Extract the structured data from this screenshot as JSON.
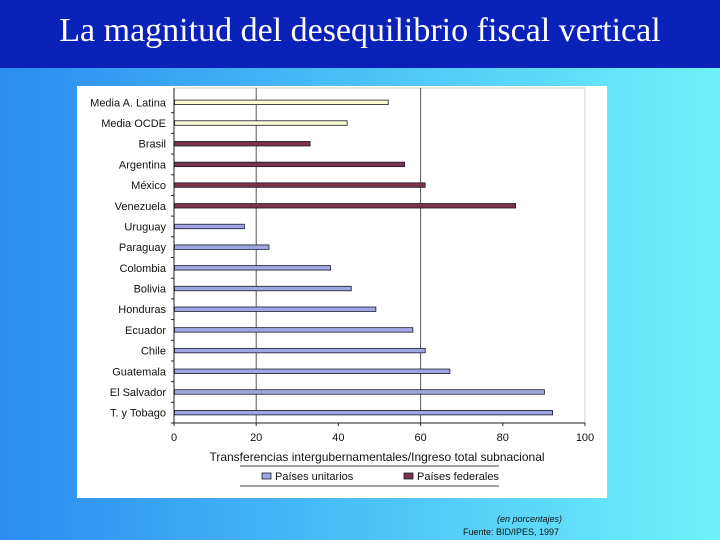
{
  "slide": {
    "title": "La magnitud del desequilibrio fiscal vertical",
    "units_note": "(en porcentajes)",
    "source_note": "Fuente: BID/IPES, 1997"
  },
  "colors": {
    "title_bar": "#0a22b8",
    "unitarios": "#9fa6e2",
    "federales": "#7b3349",
    "medias": "#fbfbd2"
  },
  "chart_data": {
    "type": "bar",
    "orientation": "horizontal",
    "categories": [
      "Media A. Latina",
      "Media OCDE",
      "Brasil",
      "Argentina",
      "México",
      "Venezuela",
      "Uruguay",
      "Paraguay",
      "Colombia",
      "Bolivia",
      "Honduras",
      "Ecuador",
      "Chile",
      "Guatemala",
      "El Salvador",
      "T. y Tobago"
    ],
    "values": [
      52,
      42,
      33,
      56,
      61,
      83,
      17,
      23,
      38,
      43,
      49,
      58,
      61,
      67,
      90,
      92
    ],
    "groups": [
      "media",
      "media",
      "federales",
      "federales",
      "federales",
      "federales",
      "unitarios",
      "unitarios",
      "unitarios",
      "unitarios",
      "unitarios",
      "unitarios",
      "unitarios",
      "unitarios",
      "unitarios",
      "unitarios"
    ],
    "xlabel": "Transferencias intergubernamentales/Ingreso total subnacional",
    "xlim": [
      0,
      100
    ],
    "xticks": [
      0,
      20,
      40,
      60,
      80,
      100
    ],
    "gridlines_x": [
      20,
      60
    ],
    "legend": {
      "position": "bottom",
      "entries": [
        {
          "name": "Países unitarios",
          "group": "unitarios"
        },
        {
          "name": "Países federales",
          "group": "federales"
        }
      ]
    }
  }
}
